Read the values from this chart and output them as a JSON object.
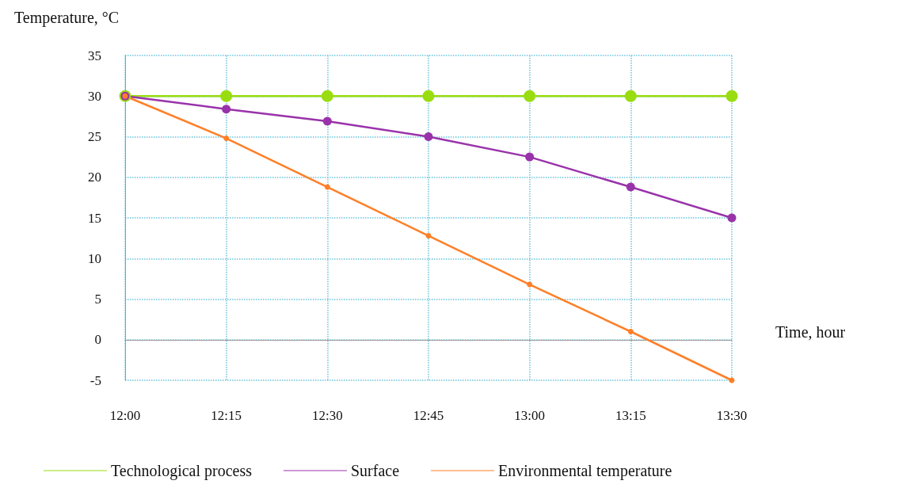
{
  "chart_data": {
    "type": "line",
    "xlabel": "Time, hour",
    "ylabel": "Temperature, °C",
    "categories": [
      "12:00",
      "12:15",
      "12:30",
      "12:45",
      "13:00",
      "13:15",
      "13:30"
    ],
    "series": [
      {
        "name": "Technological process",
        "color": "#99dd11",
        "values": [
          30,
          30,
          30,
          30,
          30,
          30,
          30
        ]
      },
      {
        "name": "Surface",
        "color": "#9933aa",
        "values": [
          30,
          28.4,
          26.9,
          25,
          22.5,
          18.8,
          15
        ]
      },
      {
        "name": "Environmental temperature",
        "color": "#ff7f27",
        "values": [
          30,
          24.8,
          18.8,
          12.8,
          6.8,
          1,
          -5
        ]
      }
    ],
    "ylim": [
      -5,
      35
    ],
    "yticks": [
      -5,
      0,
      5,
      10,
      15,
      20,
      25,
      30,
      35
    ],
    "grid": true,
    "legend": "bottom",
    "marker": "circle",
    "line_style": "solid"
  }
}
